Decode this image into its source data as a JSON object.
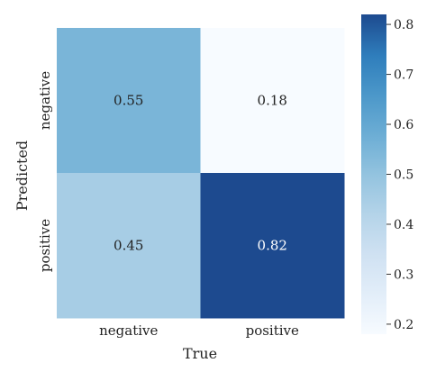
{
  "chart_data": {
    "type": "heatmap",
    "xlabel": "True",
    "ylabel": "Predicted",
    "x_categories": [
      "negative",
      "positive"
    ],
    "y_categories": [
      "negative",
      "positive"
    ],
    "values": [
      [
        0.55,
        0.18
      ],
      [
        0.45,
        0.82
      ]
    ],
    "cell_labels": [
      [
        "0.55",
        "0.18"
      ],
      [
        "0.45",
        "0.82"
      ]
    ],
    "colormap": "Blues",
    "colorbar": {
      "min": 0.18,
      "max": 0.82,
      "ticks": [
        0.2,
        0.3,
        0.4,
        0.5,
        0.6,
        0.7,
        0.8
      ],
      "tick_labels": [
        "0.2",
        "0.3",
        "0.4",
        "0.5",
        "0.6",
        "0.7",
        "0.8"
      ]
    }
  }
}
